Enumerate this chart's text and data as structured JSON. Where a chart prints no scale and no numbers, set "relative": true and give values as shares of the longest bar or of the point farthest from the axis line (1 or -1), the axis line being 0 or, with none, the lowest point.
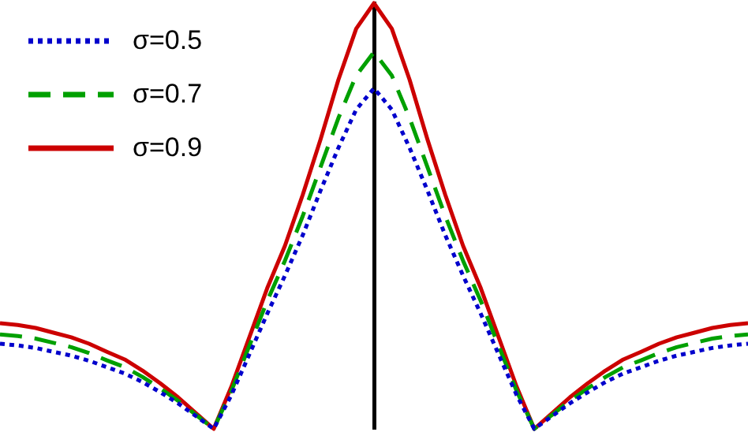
{
  "chart_data": {
    "type": "line",
    "relative": true,
    "legend": "top left",
    "marker": "none",
    "categories": [
      null,
      null,
      null,
      null,
      null,
      null,
      null,
      null,
      null,
      null,
      null,
      null,
      null,
      null,
      null,
      null,
      null,
      null,
      null,
      null,
      null,
      null,
      null,
      null,
      null,
      null,
      null,
      null,
      null,
      null,
      null,
      null,
      null,
      null,
      null,
      null,
      null,
      null,
      null,
      null,
      null,
      null,
      null
    ],
    "series": [
      {
        "name": "σ=0.5",
        "color": "#0000cc",
        "line_style": "dotted",
        "values": [
          0.2,
          0.196,
          0.19,
          0.181,
          0.172,
          0.16,
          0.145,
          0.13,
          0.11,
          0.086,
          0.06,
          0.03,
          0,
          0.08,
          0.175,
          0.27,
          0.36,
          0.455,
          0.56,
          0.66,
          0.75,
          0.8,
          0.75,
          0.66,
          0.56,
          0.455,
          0.36,
          0.27,
          0.175,
          0.08,
          0,
          0.03,
          0.06,
          0.086,
          0.11,
          0.13,
          0.145,
          0.16,
          0.172,
          0.181,
          0.19,
          0.196,
          0.2
        ]
      },
      {
        "name": "σ=0.7",
        "color": "#00a000",
        "line_style": "dashed",
        "values": [
          0.222,
          0.218,
          0.212,
          0.202,
          0.192,
          0.178,
          0.161,
          0.145,
          0.122,
          0.095,
          0.066,
          0.033,
          0,
          0.09,
          0.195,
          0.3,
          0.395,
          0.5,
          0.615,
          0.73,
          0.83,
          0.885,
          0.83,
          0.73,
          0.615,
          0.5,
          0.395,
          0.3,
          0.195,
          0.09,
          0,
          0.033,
          0.066,
          0.095,
          0.122,
          0.145,
          0.161,
          0.178,
          0.192,
          0.202,
          0.212,
          0.218,
          0.222
        ]
      },
      {
        "name": "σ=0.9",
        "color": "#cc0000",
        "line_style": "solid",
        "values": [
          0.248,
          0.244,
          0.237,
          0.226,
          0.215,
          0.2,
          0.181,
          0.163,
          0.137,
          0.107,
          0.074,
          0.037,
          0,
          0.1,
          0.215,
          0.33,
          0.43,
          0.55,
          0.68,
          0.82,
          0.94,
          1,
          0.94,
          0.82,
          0.68,
          0.55,
          0.43,
          0.33,
          0.215,
          0.1,
          0,
          0.037,
          0.074,
          0.107,
          0.137,
          0.163,
          0.181,
          0.2,
          0.215,
          0.226,
          0.237,
          0.244,
          0.248
        ]
      }
    ]
  }
}
